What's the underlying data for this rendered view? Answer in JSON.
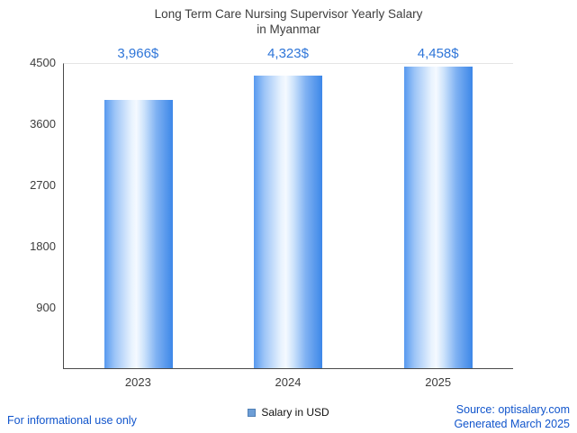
{
  "header": {
    "title_lines": [
      "Long Term Care Nursing Supervisor Yearly Salary",
      "in Myanmar"
    ]
  },
  "chart_data": {
    "type": "bar",
    "title": "Long Term Care Nursing Supervisor Yearly Salary in Myanmar",
    "categories": [
      "2023",
      "2024",
      "2025"
    ],
    "values": [
      3966,
      4323,
      4458
    ],
    "value_labels": [
      "3,966$",
      "4,323$",
      "4,458$"
    ],
    "series_name": "Salary in USD",
    "xlabel": "",
    "ylabel": "",
    "ylim": [
      0,
      4500
    ],
    "yticks": [
      900,
      1800,
      2700,
      3600,
      4500
    ],
    "grid": "single top gridline at 4500",
    "legend_position": "bottom-center",
    "colors": {
      "bar_main": "#3c87e8",
      "bar_light": "#e9f3fe",
      "value_label": "#2e75d8",
      "footer_link": "#1155cc",
      "axis": "#4a4a4a",
      "text": "#3d3d3d",
      "legend_marker": "#6d9ed6"
    }
  },
  "legend": {
    "label": "Salary in USD"
  },
  "footer": {
    "disclaimer": "For informational use only",
    "source": "Source: optisalary.com",
    "generated": "Generated March 2025"
  }
}
